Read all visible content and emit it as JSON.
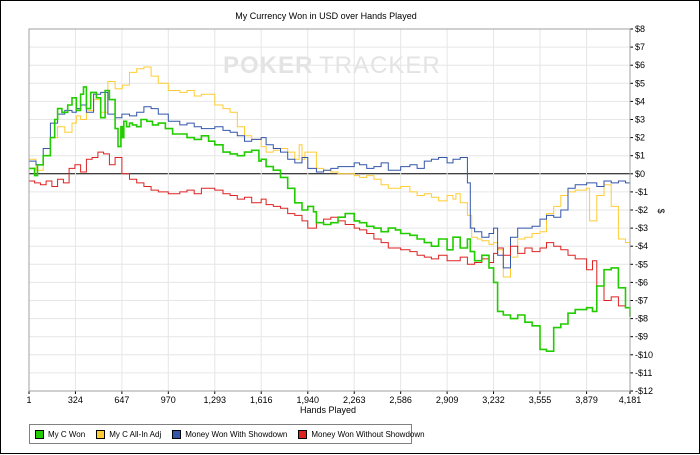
{
  "window": {
    "title": "My Currency Won in USD over Hands Played"
  },
  "watermark": {
    "poker": "POKER",
    "tracker": "TRACKER"
  },
  "chart_data": {
    "type": "line",
    "title": "My Currency Won in USD over Hands Played",
    "xlabel": "Hands Played",
    "ylabel": "$",
    "xlim": [
      1,
      4181
    ],
    "ylim": [
      -12,
      8
    ],
    "x_ticks": [
      1,
      324,
      647,
      970,
      1293,
      1616,
      1940,
      2263,
      2586,
      2909,
      3232,
      3555,
      3879,
      4181
    ],
    "x_tick_labels": [
      "1",
      "324",
      "647",
      "970",
      "1,293",
      "1,616",
      "1,940",
      "2,263",
      "2,586",
      "2,909",
      "3,232",
      "3,555",
      "3,879",
      "4,181"
    ],
    "y_ticks": [
      8,
      7,
      6,
      5,
      4,
      3,
      2,
      1,
      0,
      -1,
      -2,
      -3,
      -4,
      -5,
      -6,
      -7,
      -8,
      -9,
      -10,
      -11,
      -12
    ],
    "y_tick_labels": [
      "$8",
      "$7",
      "$6",
      "$5",
      "$4",
      "$3",
      "$2",
      "$1",
      "$0",
      "-$1",
      "-$2",
      "-$3",
      "-$4",
      "-$5",
      "-$6",
      "-$7",
      "-$8",
      "-$9",
      "-$10",
      "-$11",
      "-$12"
    ],
    "grid": true,
    "legend_position": "bottom-left",
    "series": [
      {
        "name": "My C Won",
        "color": "#22cc00",
        "x": [
          1,
          40,
          60,
          100,
          150,
          180,
          200,
          230,
          270,
          300,
          330,
          360,
          380,
          400,
          430,
          470,
          500,
          530,
          560,
          600,
          620,
          640,
          650,
          660,
          680,
          700,
          720,
          750,
          780,
          820,
          860,
          900,
          950,
          1000,
          1050,
          1100,
          1150,
          1200,
          1250,
          1293,
          1350,
          1400,
          1450,
          1500,
          1550,
          1600,
          1616,
          1650,
          1700,
          1750,
          1800,
          1850,
          1900,
          1940,
          1980,
          2000,
          2050,
          2100,
          2150,
          2200,
          2263,
          2300,
          2350,
          2400,
          2450,
          2500,
          2550,
          2586,
          2650,
          2700,
          2750,
          2800,
          2850,
          2909,
          2950,
          3000,
          3050,
          3070,
          3100,
          3150,
          3200,
          3232,
          3260,
          3300,
          3350,
          3400,
          3450,
          3500,
          3555,
          3600,
          3650,
          3700,
          3750,
          3800,
          3879,
          3920,
          3950,
          4000,
          4050,
          4100,
          4150,
          4181
        ],
        "values": [
          0.3,
          -0.1,
          0.5,
          1.0,
          2.0,
          3.0,
          3.6,
          3.4,
          3.8,
          4.2,
          3.5,
          4.4,
          4.8,
          3.6,
          4.5,
          4.2,
          3.1,
          4.6,
          4.1,
          2.5,
          1.5,
          2.6,
          2.0,
          2.9,
          2.6,
          2.8,
          2.7,
          2.6,
          3.0,
          2.9,
          2.7,
          2.8,
          2.5,
          2.2,
          2.2,
          2.0,
          1.9,
          2.1,
          1.8,
          1.6,
          1.2,
          1.1,
          1.0,
          1.2,
          1.3,
          0.7,
          0.8,
          0.4,
          0.2,
          -0.2,
          -0.8,
          -1.6,
          -2.0,
          -1.8,
          -2.1,
          -2.7,
          -2.8,
          -2.7,
          -2.4,
          -2.2,
          -2.6,
          -2.7,
          -2.9,
          -3.0,
          -3.2,
          -3.0,
          -3.1,
          -3.3,
          -3.4,
          -3.6,
          -3.8,
          -4.0,
          -3.6,
          -4.2,
          -3.5,
          -4.1,
          -3.6,
          -4.3,
          -4.8,
          -4.5,
          -5.2,
          -6.0,
          -7.6,
          -7.8,
          -8.0,
          -7.8,
          -8.2,
          -8.4,
          -9.7,
          -9.8,
          -8.5,
          -8.3,
          -7.7,
          -7.5,
          -7.4,
          -7.6,
          -6.2,
          -5.3,
          -5.2,
          -6.3,
          -7.4,
          -7.9
        ]
      },
      {
        "name": "My C All-In Adj",
        "color": "#ffcc33",
        "x": [
          1,
          50,
          100,
          150,
          200,
          250,
          300,
          330,
          360,
          400,
          450,
          500,
          550,
          600,
          650,
          700,
          750,
          800,
          850,
          900,
          970,
          1050,
          1100,
          1150,
          1200,
          1293,
          1350,
          1400,
          1450,
          1500,
          1550,
          1616,
          1650,
          1700,
          1750,
          1800,
          1850,
          1880,
          1900,
          1920,
          1940,
          2000,
          2050,
          2100,
          2150,
          2263,
          2300,
          2350,
          2400,
          2450,
          2500,
          2586,
          2650,
          2700,
          2750,
          2800,
          2850,
          2909,
          2950,
          2970,
          3000,
          3050,
          3080,
          3120,
          3150,
          3200,
          3232,
          3260,
          3300,
          3350,
          3400,
          3450,
          3500,
          3555,
          3600,
          3650,
          3700,
          3750,
          3800,
          3879,
          3900,
          3950,
          4000,
          4050,
          4100,
          4150,
          4181
        ],
        "values": [
          0.8,
          0.2,
          1.0,
          2.0,
          2.6,
          2.3,
          2.8,
          3.2,
          3.0,
          3.5,
          4.1,
          3.4,
          5.1,
          4.7,
          4.9,
          5.6,
          5.8,
          5.9,
          5.4,
          5.0,
          4.6,
          4.5,
          4.6,
          4.3,
          4.4,
          3.8,
          3.6,
          3.4,
          2.6,
          2.1,
          1.9,
          1.5,
          1.2,
          1.3,
          1.4,
          1.2,
          0.8,
          1.6,
          0.8,
          1.2,
          1.2,
          0.3,
          0.2,
          0.1,
          0.0,
          -0.1,
          -0.2,
          -0.1,
          -0.3,
          -0.6,
          -0.8,
          -0.7,
          -1.0,
          -1.2,
          -1.1,
          -1.3,
          -1.5,
          -1.2,
          -1.4,
          -1.1,
          -1.6,
          -2.3,
          -3.5,
          -3.6,
          -3.7,
          -3.9,
          -3.8,
          -4.2,
          -5.7,
          -4.6,
          -3.6,
          -3.5,
          -3.3,
          -3.2,
          -2.2,
          -1.8,
          -1.2,
          -1.0,
          -0.9,
          -0.8,
          -2.6,
          -1.2,
          -0.6,
          -1.8,
          -3.6,
          -3.8,
          -3.9
        ]
      },
      {
        "name": "Money Won With Showdown",
        "color": "#3355aa",
        "x": [
          1,
          50,
          100,
          150,
          200,
          250,
          300,
          330,
          360,
          400,
          450,
          500,
          550,
          600,
          647,
          700,
          750,
          800,
          850,
          900,
          970,
          1050,
          1100,
          1150,
          1200,
          1293,
          1350,
          1400,
          1450,
          1500,
          1550,
          1616,
          1650,
          1700,
          1750,
          1800,
          1850,
          1900,
          1940,
          2000,
          2050,
          2100,
          2150,
          2263,
          2300,
          2350,
          2400,
          2450,
          2500,
          2586,
          2650,
          2700,
          2750,
          2800,
          2850,
          2909,
          2950,
          3000,
          3050,
          3070,
          3100,
          3150,
          3200,
          3232,
          3260,
          3300,
          3350,
          3400,
          3450,
          3500,
          3555,
          3600,
          3650,
          3700,
          3750,
          3800,
          3879,
          3950,
          4000,
          4050,
          4100,
          4150,
          4181
        ],
        "values": [
          0.7,
          0.5,
          1.4,
          2.8,
          3.3,
          3.5,
          3.4,
          3.6,
          3.8,
          3.4,
          4.4,
          4.5,
          3.3,
          3.1,
          3.3,
          3.2,
          3.4,
          3.7,
          3.6,
          3.3,
          2.9,
          2.7,
          2.8,
          2.6,
          2.5,
          2.6,
          2.4,
          2.3,
          2.1,
          1.8,
          1.9,
          2.0,
          1.6,
          1.4,
          1.2,
          0.8,
          0.6,
          0.9,
          0.3,
          0.1,
          0.2,
          0.3,
          0.4,
          0.6,
          0.5,
          0.3,
          0.4,
          0.6,
          0.2,
          0.4,
          0.5,
          0.3,
          0.7,
          0.8,
          0.9,
          0.6,
          0.8,
          0.9,
          -0.5,
          -3.0,
          -3.2,
          -3.5,
          -3.3,
          -3.0,
          -4.5,
          -5.2,
          -3.5,
          -3.0,
          -3.0,
          -2.9,
          -2.5,
          -2.3,
          -2.4,
          -2.0,
          -0.8,
          -0.6,
          -0.5,
          -0.7,
          -0.4,
          -0.5,
          -0.4,
          -0.5,
          -0.9
        ]
      },
      {
        "name": "Money Won Without Showdown",
        "color": "#dd2222",
        "x": [
          1,
          40,
          80,
          120,
          160,
          200,
          240,
          280,
          320,
          360,
          400,
          440,
          480,
          520,
          560,
          600,
          647,
          700,
          750,
          800,
          850,
          900,
          970,
          1050,
          1100,
          1150,
          1200,
          1293,
          1350,
          1400,
          1450,
          1500,
          1550,
          1616,
          1650,
          1700,
          1750,
          1800,
          1850,
          1900,
          1940,
          2000,
          2050,
          2100,
          2150,
          2200,
          2263,
          2300,
          2350,
          2400,
          2450,
          2500,
          2586,
          2650,
          2700,
          2750,
          2800,
          2850,
          2909,
          2950,
          3000,
          3050,
          3100,
          3150,
          3200,
          3232,
          3260,
          3300,
          3350,
          3400,
          3450,
          3500,
          3555,
          3600,
          3650,
          3700,
          3750,
          3800,
          3879,
          3920,
          3950,
          4000,
          4050,
          4100,
          4150,
          4181
        ],
        "values": [
          -0.4,
          -0.5,
          -0.6,
          -0.4,
          -0.7,
          -0.3,
          -0.5,
          0.3,
          0.5,
          0.1,
          0.8,
          0.9,
          1.2,
          1.1,
          0.5,
          0.9,
          0.0,
          -0.3,
          -0.5,
          -0.7,
          -0.9,
          -1.0,
          -1.1,
          -1.0,
          -0.9,
          -1.1,
          -0.8,
          -0.9,
          -1.1,
          -1.2,
          -1.4,
          -1.3,
          -1.6,
          -1.4,
          -1.7,
          -1.8,
          -1.9,
          -2.2,
          -2.3,
          -2.6,
          -3.0,
          -2.7,
          -2.5,
          -2.4,
          -2.6,
          -2.8,
          -3.0,
          -3.1,
          -3.3,
          -3.6,
          -3.8,
          -4.1,
          -4.2,
          -4.3,
          -4.5,
          -4.6,
          -4.7,
          -4.5,
          -4.8,
          -4.8,
          -4.6,
          -5.0,
          -4.9,
          -4.7,
          -4.9,
          -4.4,
          -4.1,
          -4.5,
          -4.0,
          -4.4,
          -4.1,
          -4.3,
          -4.1,
          -3.8,
          -4.0,
          -4.2,
          -4.5,
          -4.7,
          -5.3,
          -4.8,
          -6.2,
          -7.0,
          -6.8,
          -7.3,
          -7.4,
          -7.6
        ]
      }
    ]
  }
}
